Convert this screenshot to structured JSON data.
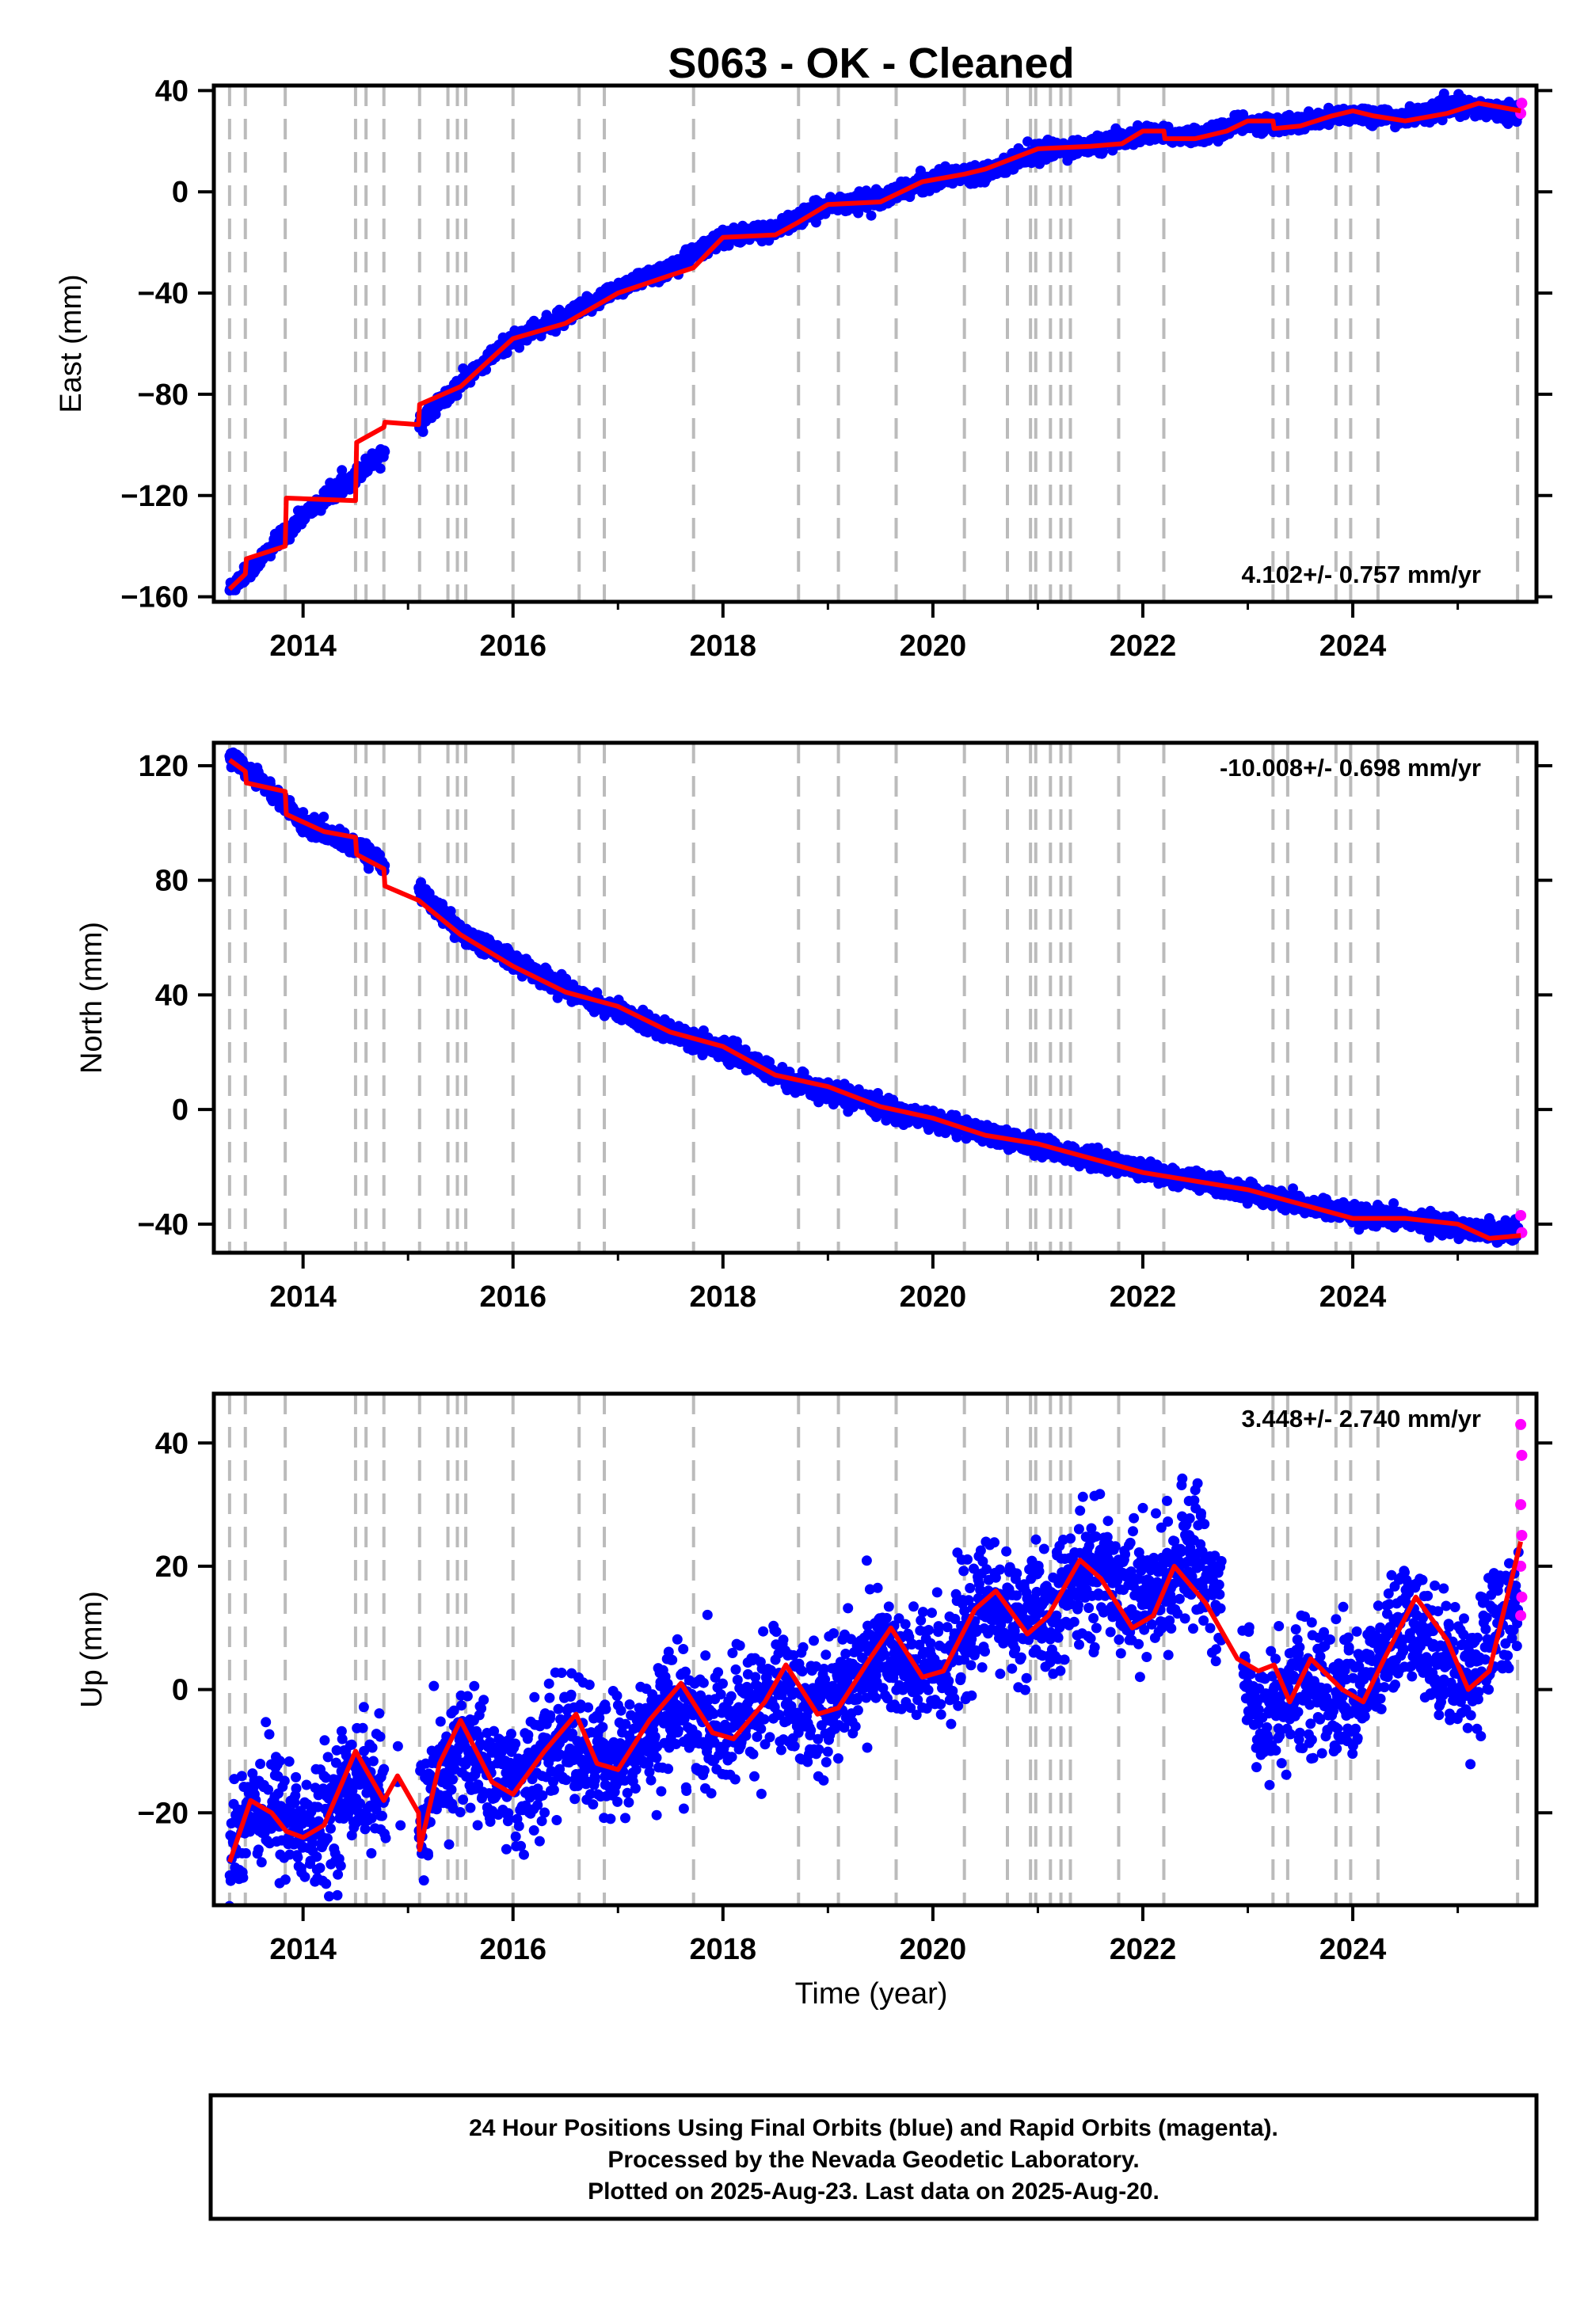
{
  "figure": {
    "title": "S063  - OK - Cleaned",
    "xlabel": "Time (year)",
    "footer": [
      "24 Hour Positions Using Final Orbits (blue) and Rapid Orbits (magenta).",
      "Processed by the Nevada Geodetic Laboratory.",
      "Plotted on 2025-Aug-23. Last data on 2025-Aug-20."
    ],
    "colors": {
      "final": "#0000ff",
      "rapid": "#ff00ff",
      "model": "#ff0000",
      "steps": "#bbbbbb"
    }
  },
  "chart_data": [
    {
      "type": "scatter",
      "component": "east",
      "ylabel": "East (mm)",
      "rate_label": "4.102+/- 0.757 mm/yr",
      "xlim": [
        2013.15,
        2025.75
      ],
      "ylim": [
        -162,
        42
      ],
      "xticks": [
        2014,
        2016,
        2018,
        2020,
        2022,
        2024
      ],
      "yticks": [
        -160,
        -120,
        -80,
        -40,
        0,
        40
      ],
      "ytick_labels": [
        "−160",
        "−120",
        "−80",
        "−40",
        "0",
        "40"
      ],
      "rapid_orbit_values_mm": [
        31,
        35
      ],
      "model": {
        "x": [
          2013.3,
          2013.45,
          2013.46,
          2013.83,
          2013.84,
          2014.5,
          2014.51,
          2014.77,
          2014.78,
          2015.1,
          2015.11,
          2015.5,
          2016,
          2016.5,
          2017,
          2017.5,
          2017.72,
          2018,
          2018.5,
          2018.72,
          2019,
          2019.5,
          2019.9,
          2020.3,
          2020.5,
          2021,
          2021.5,
          2021.8,
          2022,
          2022.2,
          2022.21,
          2022.5,
          2022.8,
          2023,
          2023.24,
          2023.25,
          2023.5,
          2023.8,
          2024,
          2024.2,
          2024.5,
          2024.9,
          2025.2,
          2025.6
        ],
        "y": [
          -157,
          -151,
          -145,
          -140,
          -121,
          -122,
          -99,
          -93,
          -91,
          -92,
          -84,
          -77,
          -58,
          -52,
          -40,
          -33,
          -30,
          -18,
          -17,
          -12,
          -5,
          -4,
          4,
          7,
          9,
          17,
          18,
          19,
          24,
          24,
          21,
          21,
          24,
          28,
          28,
          25,
          26,
          30,
          32,
          30,
          28,
          31,
          35,
          32
        ]
      },
      "observed_trend": {
        "x": [
          2013.3,
          2013.6,
          2014,
          2014.5,
          2015,
          2015.5,
          2016,
          2016.5,
          2017,
          2017.5,
          2018,
          2018.5,
          2019,
          2019.5,
          2020,
          2020.5,
          2021,
          2021.5,
          2022,
          2022.5,
          2023,
          2023.5,
          2024,
          2024.5,
          2025,
          2025.6
        ],
        "y": [
          -157,
          -145,
          -128,
          -112,
          -95,
          -76,
          -58,
          -50,
          -38,
          -30,
          -18,
          -15,
          -5,
          -3,
          5,
          8,
          16,
          18,
          23,
          22,
          27,
          27,
          31,
          29,
          34,
          31
        ]
      },
      "noise_mm": 1.6
    },
    {
      "type": "scatter",
      "component": "north",
      "ylabel": "North (mm)",
      "rate_label": "-10.008+/- 0.698 mm/yr",
      "xlim": [
        2013.15,
        2025.75
      ],
      "ylim": [
        -50,
        128
      ],
      "xticks": [
        2014,
        2016,
        2018,
        2020,
        2022,
        2024
      ],
      "yticks": [
        -40,
        0,
        40,
        80,
        120
      ],
      "ytick_labels": [
        "−40",
        "0",
        "40",
        "80",
        "120"
      ],
      "rapid_orbit_values_mm": [
        -37,
        -43
      ],
      "model": {
        "x": [
          2013.3,
          2013.45,
          2013.46,
          2013.83,
          2013.84,
          2014.2,
          2014.5,
          2014.51,
          2014.77,
          2014.78,
          2015.1,
          2015.5,
          2016,
          2016.5,
          2017,
          2017.5,
          2018,
          2018.5,
          2019,
          2019.5,
          2020,
          2020.5,
          2021,
          2021.5,
          2022,
          2022.5,
          2023,
          2023.5,
          2024,
          2024.5,
          2025,
          2025.3,
          2025.6
        ],
        "y": [
          122,
          118,
          114,
          111,
          103,
          97,
          95,
          89,
          84,
          78,
          73,
          61,
          50,
          41,
          36,
          27,
          22,
          12,
          8,
          1,
          -3,
          -9,
          -12,
          -17,
          -22,
          -25,
          -28,
          -33,
          -38,
          -38,
          -40,
          -45,
          -44
        ]
      },
      "observed_trend": {
        "x": [
          2013.3,
          2013.6,
          2014,
          2014.5,
          2015,
          2015.5,
          2016,
          2016.5,
          2017,
          2017.5,
          2018,
          2018.5,
          2019,
          2019.5,
          2020,
          2020.5,
          2021,
          2021.5,
          2022,
          2022.5,
          2023,
          2023.5,
          2024,
          2024.5,
          2025,
          2025.6
        ],
        "y": [
          123,
          115,
          100,
          92,
          80,
          62,
          52,
          42,
          34,
          27,
          21,
          12,
          6,
          1,
          -4,
          -8,
          -13,
          -17,
          -21,
          -25,
          -29,
          -33,
          -37,
          -38,
          -41,
          -43
        ]
      },
      "noise_mm": 1.6
    },
    {
      "type": "scatter",
      "component": "up",
      "ylabel": "Up (mm)",
      "rate_label": "3.448+/- 2.740 mm/yr",
      "xlim": [
        2013.15,
        2025.75
      ],
      "ylim": [
        -35,
        48
      ],
      "xticks": [
        2014,
        2016,
        2018,
        2020,
        2022,
        2024
      ],
      "yticks": [
        -20,
        0,
        20,
        40
      ],
      "ytick_labels": [
        "−20",
        "0",
        "20",
        "40"
      ],
      "rapid_orbit_values_mm": [
        43,
        38,
        30,
        25,
        20,
        15,
        12
      ],
      "model": {
        "x": [
          2013.3,
          2013.5,
          2013.7,
          2013.84,
          2014,
          2014.2,
          2014.5,
          2014.6,
          2014.77,
          2014.9,
          2015.1,
          2015.11,
          2015.3,
          2015.5,
          2015.8,
          2016,
          2016.3,
          2016.6,
          2016.8,
          2017,
          2017.3,
          2017.6,
          2017.9,
          2018.1,
          2018.4,
          2018.6,
          2018.9,
          2019.1,
          2019.4,
          2019.6,
          2019.9,
          2020.1,
          2020.4,
          2020.6,
          2020.9,
          2021.1,
          2021.4,
          2021.6,
          2021.9,
          2022.1,
          2022.3,
          2022.6,
          2022.9,
          2023.1,
          2023.25,
          2023.4,
          2023.6,
          2023.9,
          2024.1,
          2024.3,
          2024.6,
          2024.9,
          2025.1,
          2025.3,
          2025.6
        ],
        "y": [
          -28,
          -18,
          -20,
          -23,
          -24,
          -22,
          -10,
          -13,
          -18,
          -14,
          -20,
          -26,
          -12,
          -5,
          -15,
          -17,
          -10,
          -4,
          -12,
          -13,
          -5,
          1,
          -7,
          -8,
          -2,
          4,
          -4,
          -3,
          5,
          10,
          2,
          3,
          13,
          16,
          9,
          12,
          21,
          18,
          10,
          12,
          20,
          14,
          5,
          3,
          4,
          -2,
          5,
          0,
          -2,
          5,
          15,
          8,
          0,
          3,
          24
        ]
      },
      "observed_trend": {
        "x": [
          2013.3,
          2013.5,
          2013.8,
          2014.1,
          2014.5,
          2014.8,
          2015.1,
          2015.5,
          2015.8,
          2016.1,
          2016.5,
          2016.8,
          2017.1,
          2017.5,
          2017.8,
          2018.1,
          2018.5,
          2018.8,
          2019.1,
          2019.5,
          2019.8,
          2020.1,
          2020.5,
          2020.8,
          2021.1,
          2021.5,
          2021.8,
          2022.1,
          2022.5,
          2022.9,
          2023.1,
          2023.5,
          2023.8,
          2024.1,
          2024.5,
          2024.8,
          2025.1,
          2025.6
        ],
        "y": [
          -27,
          -18,
          -20,
          -24,
          -14,
          -18,
          -22,
          -9,
          -13,
          -16,
          -7,
          -12,
          -11,
          -2,
          -7,
          -6,
          1,
          -3,
          -1,
          7,
          2,
          4,
          14,
          12,
          11,
          20,
          17,
          15,
          23,
          7,
          -5,
          1,
          -1,
          0,
          11,
          6,
          2,
          17
        ]
      },
      "noise_mm": 5.0
    }
  ],
  "step_epochs": [
    2013.3,
    2013.45,
    2013.83,
    2014.5,
    2014.6,
    2014.77,
    2015.11,
    2015.38,
    2015.47,
    2015.55,
    2016.0,
    2016.63,
    2016.87,
    2017.72,
    2018.72,
    2019.1,
    2019.65,
    2020.3,
    2020.71,
    2020.93,
    2020.98,
    2021.12,
    2021.22,
    2021.31,
    2021.77,
    2022.2,
    2023.24,
    2023.38,
    2023.84,
    2023.98,
    2024.24,
    2025.57
  ]
}
